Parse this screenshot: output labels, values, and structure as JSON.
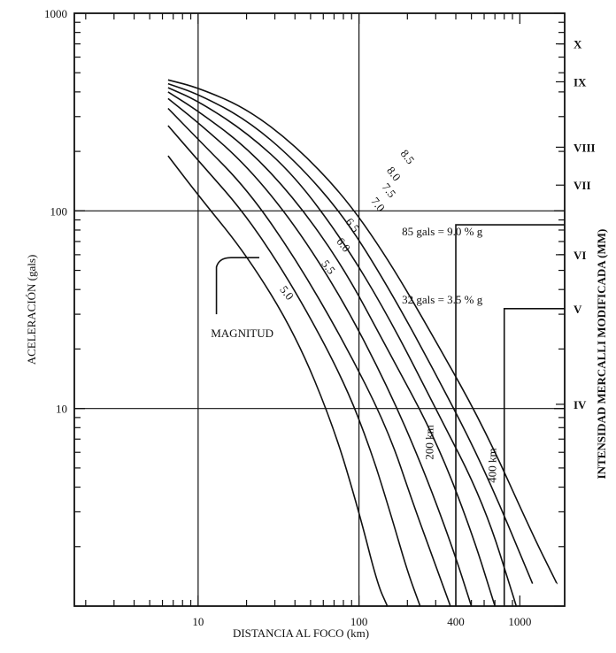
{
  "chart_data": {
    "type": "line",
    "xlabel": "DISTANCIA AL FOCO (km)",
    "ylabel": "ACELERACIÓN (gals)",
    "right_axis_label": "INTENSIDAD MERCALLI MODIFICADA (MM)",
    "x_scale": "log",
    "y_scale": "log",
    "xlim": [
      1.7,
      1900
    ],
    "ylim": [
      1,
      1000
    ],
    "grid": true,
    "x_tick_labels": [
      {
        "value": 10,
        "label": "10"
      },
      {
        "value": 100,
        "label": "100"
      },
      {
        "value": 400,
        "label": "400"
      },
      {
        "value": 1000,
        "label": "1000"
      }
    ],
    "y_tick_labels": [
      {
        "value": 10,
        "label": "10"
      },
      {
        "value": 100,
        "label": "100"
      },
      {
        "value": 1000,
        "label": "1000"
      }
    ],
    "mercalli_levels": [
      {
        "value": 700,
        "label": "X"
      },
      {
        "value": 450,
        "label": "IX"
      },
      {
        "value": 210,
        "label": "VIII"
      },
      {
        "value": 135,
        "label": "VII"
      },
      {
        "value": 60,
        "label": "VI"
      },
      {
        "value": 32,
        "label": "V"
      },
      {
        "value": 10.5,
        "label": "IV"
      }
    ],
    "series": [
      {
        "name": "5.0",
        "x": [
          6.5,
          10,
          20,
          40,
          70,
          100,
          130,
          150
        ],
        "y": [
          190,
          120,
          60,
          24,
          8,
          3,
          1.3,
          1
        ]
      },
      {
        "name": "5.5",
        "x": [
          6.5,
          10,
          20,
          40,
          80,
          120,
          160,
          200,
          240
        ],
        "y": [
          270,
          180,
          95,
          40,
          14,
          6,
          2.8,
          1.5,
          1
        ]
      },
      {
        "name": "6.0",
        "x": [
          6.5,
          10,
          20,
          40,
          80,
          150,
          220,
          300,
          370
        ],
        "y": [
          330,
          230,
          130,
          58,
          22,
          8,
          3.2,
          1.6,
          1
        ]
      },
      {
        "name": "6.5",
        "x": [
          6.5,
          10,
          20,
          40,
          80,
          150,
          250,
          380,
          500
        ],
        "y": [
          370,
          280,
          170,
          85,
          35,
          13,
          5,
          2,
          1
        ]
      },
      {
        "name": "7.0",
        "x": [
          6.5,
          10,
          20,
          40,
          80,
          150,
          300,
          500,
          700
        ],
        "y": [
          400,
          320,
          210,
          115,
          52,
          20,
          7,
          2.4,
          1
        ]
      },
      {
        "name": "7.5",
        "x": [
          6.5,
          10,
          20,
          40,
          80,
          150,
          300,
          600,
          950
        ],
        "y": [
          420,
          360,
          250,
          150,
          70,
          30,
          10,
          3.3,
          1
        ]
      },
      {
        "name": "8.0",
        "x": [
          6.5,
          10,
          20,
          40,
          80,
          150,
          300,
          600,
          1200
        ],
        "y": [
          440,
          390,
          290,
          180,
          95,
          42,
          15,
          5,
          1.3
        ]
      },
      {
        "name": "8.5",
        "x": [
          6.5,
          10,
          20,
          40,
          80,
          150,
          300,
          600,
          1200,
          1700
        ],
        "y": [
          460,
          420,
          330,
          215,
          120,
          58,
          22,
          8,
          2.3,
          1.3
        ]
      }
    ],
    "curve_label_positions": [
      {
        "label": "5.0",
        "x": 32,
        "y": 40
      },
      {
        "label": "5.5",
        "x": 58,
        "y": 54
      },
      {
        "label": "6.0",
        "x": 72,
        "y": 70
      },
      {
        "label": "6.5",
        "x": 82,
        "y": 88
      },
      {
        "label": "7.0",
        "x": 118,
        "y": 112
      },
      {
        "label": "7.5",
        "x": 138,
        "y": 132
      },
      {
        "label": "8.0",
        "x": 148,
        "y": 160
      },
      {
        "label": "8.5",
        "x": 180,
        "y": 195
      }
    ],
    "annotations": [
      {
        "text": "MAGNITUD",
        "x": 12,
        "y": 23
      },
      {
        "text": "85 gals = 9.0 % g",
        "x": 185,
        "y": 75
      },
      {
        "text": "32 gals = 3.5 % g",
        "x": 185,
        "y": 34
      },
      {
        "text": "200 km",
        "x": 290,
        "y": 5.5
      },
      {
        "text": "400 km",
        "x": 710,
        "y": 4.2
      }
    ],
    "reference_levels": [
      {
        "acceleration": 85,
        "distance": 400
      },
      {
        "acceleration": 32,
        "distance": 800
      }
    ]
  }
}
